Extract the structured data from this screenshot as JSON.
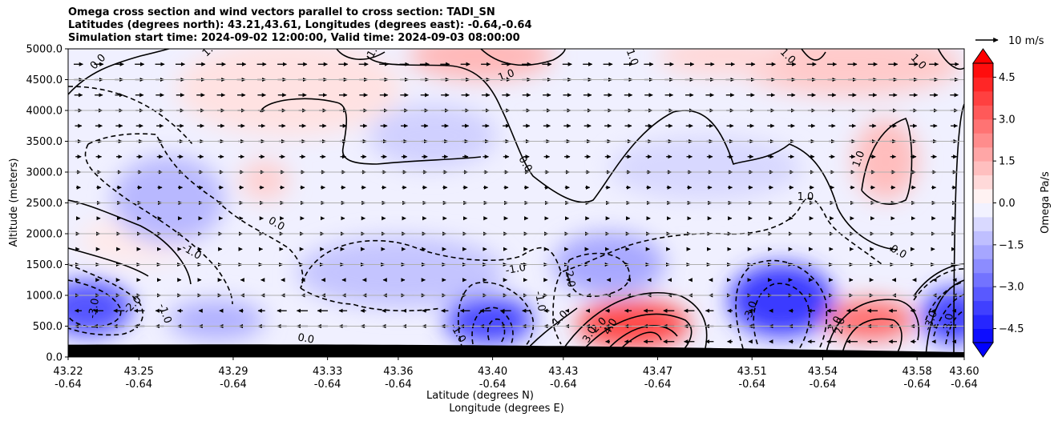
{
  "chart_data": {
    "type": "contour",
    "title_lines": [
      "Omega cross section and wind vectors parallel to cross section: TADI_SN",
      "Latitudes (degrees north): 43.21,43.61, Longitudes (degrees east): -0.64,-0.64",
      "Simulation start time: 2024-09-02 12:00:00, Valid time: 2024-09-03 08:00:00"
    ],
    "ylabel": "Altitude (meters)",
    "xlabel_lat": "Latitude (degrees N)",
    "xlabel_lon": "Longitude (degrees E)",
    "ylim": [
      0,
      5000
    ],
    "yticks": [
      "0.0",
      "500.0",
      "1000.0",
      "1500.0",
      "2000.0",
      "2500.0",
      "3000.0",
      "3500.0",
      "4000.0",
      "4500.0",
      "5000.0"
    ],
    "ytick_values": [
      0,
      500,
      1000,
      1500,
      2000,
      2500,
      3000,
      3500,
      4000,
      4500,
      5000
    ],
    "xlim": [
      43.22,
      43.6
    ],
    "xticks_lat": [
      "43.22",
      "43.25",
      "43.29",
      "43.33",
      "43.36",
      "43.40",
      "43.43",
      "43.47",
      "43.51",
      "43.54",
      "43.58",
      "43.60"
    ],
    "xtick_values": [
      43.22,
      43.25,
      43.29,
      43.33,
      43.36,
      43.4,
      43.43,
      43.47,
      43.51,
      43.54,
      43.58,
      43.6
    ],
    "xticks_lon": [
      "-0.64",
      "-0.64",
      "-0.64",
      "-0.64",
      "-0.64",
      "-0.64",
      "-0.64",
      "-0.64",
      "-0.64",
      "-0.64",
      "-0.64",
      "-0.64"
    ],
    "colorbar": {
      "label": "Omega Pa/s",
      "range": [
        -5,
        5
      ],
      "ticks": [
        "4.5",
        "3.0",
        "1.5",
        "0.0",
        "−1.5",
        "−3.0",
        "−4.5"
      ],
      "tick_values": [
        4.5,
        3.0,
        1.5,
        0.0,
        -1.5,
        -3.0,
        -4.5
      ],
      "colormap": "bwr",
      "extend": "both"
    },
    "quiver_key": {
      "label": "10 m/s",
      "speed": 10
    },
    "contour_labels": [
      "0.0",
      "1.0",
      "-1.0",
      "-2.0",
      "-3.0",
      "2.0",
      "3.0",
      "4.0"
    ],
    "grid": "horizontal",
    "terrain_color": "#000000",
    "features": [
      {
        "kind": "max",
        "lat": 43.465,
        "alt": 450,
        "omega": 4.5
      },
      {
        "kind": "max",
        "lat": 43.565,
        "alt": 480,
        "omega": 3.5
      },
      {
        "kind": "max",
        "lat": 43.31,
        "alt": 2900,
        "omega": 0.8
      },
      {
        "kind": "max",
        "lat": 43.565,
        "alt": 3200,
        "omega": 1.4
      },
      {
        "kind": "min",
        "lat": 43.227,
        "alt": 760,
        "omega": -3.4
      },
      {
        "kind": "min",
        "lat": 43.4,
        "alt": 550,
        "omega": -4.2
      },
      {
        "kind": "min",
        "lat": 43.525,
        "alt": 600,
        "omega": -4.3
      },
      {
        "kind": "min",
        "lat": 43.598,
        "alt": 550,
        "omega": -4.0
      },
      {
        "kind": "min",
        "lat": 43.25,
        "alt": 2800,
        "omega": -1.8
      },
      {
        "kind": "min",
        "lat": 43.45,
        "alt": 1300,
        "omega": -2.2
      }
    ]
  }
}
